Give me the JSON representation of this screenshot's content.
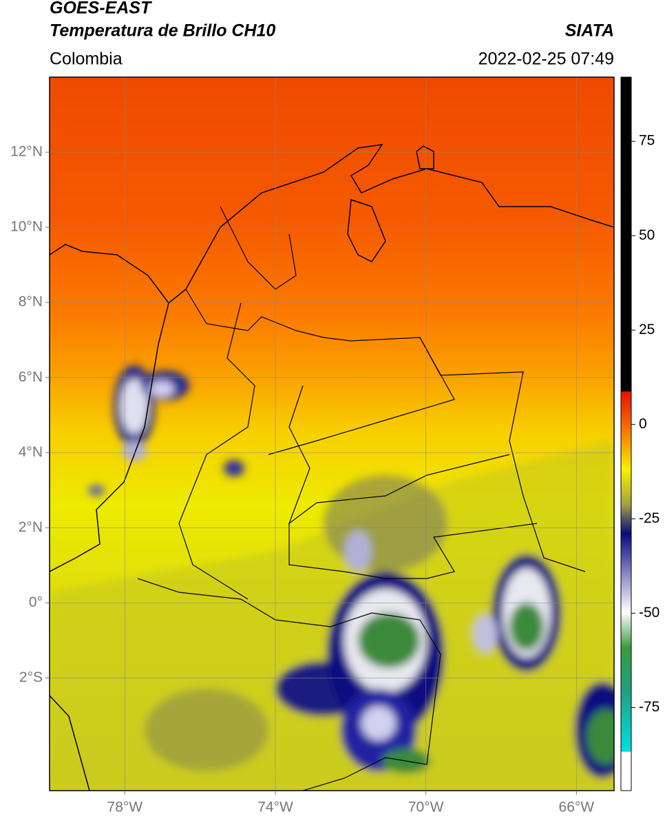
{
  "header": {
    "title": "GOES-EAST",
    "subtitle": "Temperatura de Brillo CH10",
    "source": "SIATA",
    "region": "Colombia",
    "datetime": "2022-02-25 07:49"
  },
  "map": {
    "lonlim": [
      -80,
      -65
    ],
    "latlim": [
      -5,
      14
    ],
    "lon_ticks": [
      {
        "value": -78,
        "label": "78°W"
      },
      {
        "value": -74,
        "label": "74°W"
      },
      {
        "value": -70,
        "label": "70°W"
      },
      {
        "value": -66,
        "label": "66°W"
      }
    ],
    "lat_ticks": [
      {
        "value": 12,
        "label": "12°N"
      },
      {
        "value": 10,
        "label": "10°N"
      },
      {
        "value": 8,
        "label": "8°N"
      },
      {
        "value": 6,
        "label": "6°N"
      },
      {
        "value": 4,
        "label": "4°N"
      },
      {
        "value": 2,
        "label": "2°N"
      },
      {
        "value": 0,
        "label": "0°"
      },
      {
        "value": -2,
        "label": "2°S"
      }
    ],
    "grid": true
  },
  "colorbar": {
    "lim": [
      -97,
      92
    ],
    "ticks": [
      75,
      50,
      25,
      0,
      -25,
      -50,
      -75
    ]
  }
}
